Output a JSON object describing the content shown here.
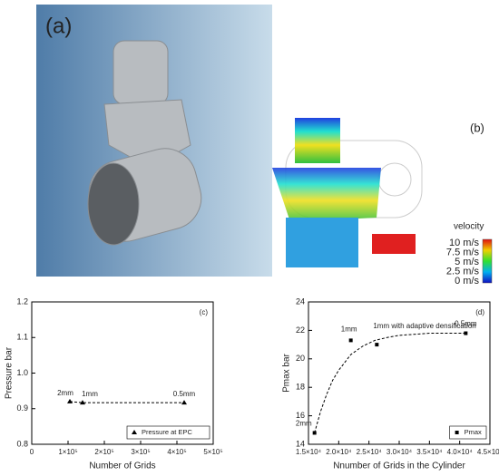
{
  "panels": {
    "a": "(a)",
    "b": "(b)"
  },
  "velocity_legend": {
    "title": "velocity",
    "labels": [
      "10 m/s",
      "7.5 m/s",
      "5 m/s",
      "2.5 m/s",
      "0 m/s"
    ]
  },
  "chart_data": [
    {
      "type": "scatter",
      "panel_label": "(c)",
      "ylabel": "Pressure bar",
      "xlabel": "Number of Grids",
      "xlim": [
        0,
        500000
      ],
      "ylim": [
        0.8,
        1.2
      ],
      "xticks": [
        0,
        {
          "value": 100000,
          "label": "1×10⁵"
        },
        {
          "value": 200000,
          "label": "2×10⁵"
        },
        {
          "value": 300000,
          "label": "3×10⁵"
        },
        {
          "value": 400000,
          "label": "4×10⁵"
        },
        {
          "value": 500000,
          "label": "5×10⁵"
        }
      ],
      "yticks": [
        0.8,
        0.9,
        {
          "value": 1,
          "label": "1.0"
        },
        1.1,
        1.2
      ],
      "legend": "lower right",
      "series": [
        {
          "name": "Pressure at EPC",
          "color": "#000000",
          "marker": "triangle",
          "line": "dashed",
          "x": [
            105000,
            140000,
            420000
          ],
          "values": [
            0.92,
            0.917,
            0.917
          ],
          "point_labels": [
            "2mm",
            "1mm",
            "0.5mm"
          ]
        }
      ]
    },
    {
      "type": "scatter",
      "panel_label": "(d)",
      "ylabel": "Pmax bar",
      "xlabel": "Nnumber of Grids in the Cylinder",
      "xlim": [
        15000,
        45000
      ],
      "ylim": [
        14,
        24
      ],
      "xticks": [
        {
          "value": 15000,
          "label": "1.5×10⁴"
        },
        {
          "value": 20000,
          "label": "2.0×10⁴"
        },
        {
          "value": 25000,
          "label": "2.5×10⁴"
        },
        {
          "value": 30000,
          "label": "3.0×10⁴"
        },
        {
          "value": 35000,
          "label": "3.5×10⁴"
        },
        {
          "value": 40000,
          "label": "4.0×10⁴"
        },
        {
          "value": 45000,
          "label": "4.5×10⁴"
        }
      ],
      "yticks": [
        14,
        16,
        18,
        20,
        22,
        24
      ],
      "legend": "lower right",
      "series": [
        {
          "name": "Pmax",
          "color": "#000000",
          "marker": "square",
          "x": [
            16000,
            22000,
            26300,
            41000
          ],
          "values": [
            14.8,
            21.3,
            21.0,
            21.8
          ],
          "point_labels": [
            "2mm",
            "1mm",
            "1mm with adaptive densification",
            "0.5mm"
          ]
        },
        {
          "color": "#000000",
          "line": "dashed",
          "x": [
            16000,
            17000,
            18000,
            19000,
            20000,
            22000,
            24000,
            26000,
            28000,
            30000,
            35000,
            41000
          ],
          "values": [
            14.8,
            16.3,
            17.5,
            18.5,
            19.2,
            20.3,
            20.9,
            21.3,
            21.5,
            21.65,
            21.8,
            21.8
          ]
        }
      ]
    }
  ]
}
